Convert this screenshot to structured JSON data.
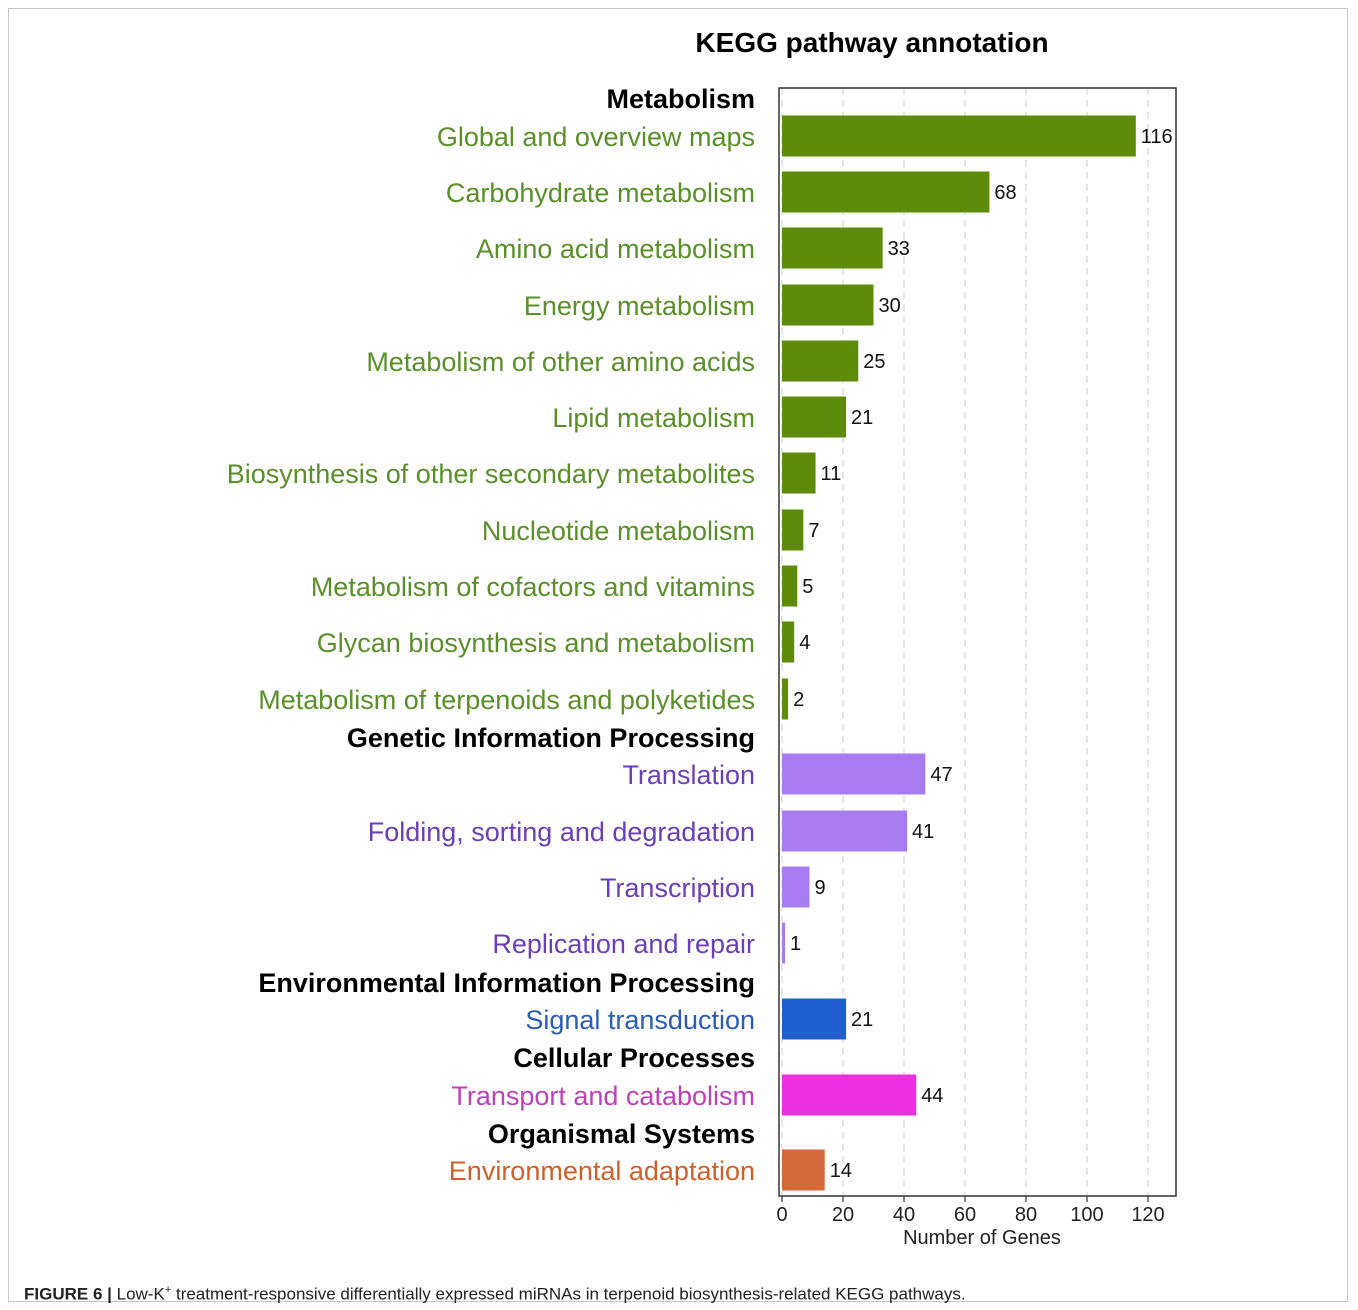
{
  "chart_data": {
    "type": "bar",
    "orientation": "horizontal",
    "title": "KEGG pathway annotation",
    "xlabel": "Number of Genes",
    "xlim": [
      0,
      126
    ],
    "xticks": [
      0,
      20,
      40,
      60,
      80,
      100,
      120
    ],
    "grid": "vertical dashed",
    "groups": [
      {
        "name": "Metabolism",
        "color": "#5e8c0a",
        "label_color": "#5a8f29",
        "categories": [
          "Global and overview maps",
          "Carbohydrate metabolism",
          "Amino acid metabolism",
          "Energy metabolism",
          "Metabolism of other amino acids",
          "Lipid metabolism",
          "Biosynthesis of other secondary metabolites",
          "Nucleotide metabolism",
          "Metabolism of cofactors and vitamins",
          "Glycan biosynthesis and metabolism",
          "Metabolism of terpenoids and polyketides"
        ],
        "values": [
          116,
          68,
          33,
          30,
          25,
          21,
          11,
          7,
          5,
          4,
          2
        ]
      },
      {
        "name": "Genetic Information Processing",
        "color": "#a67cf0",
        "label_color": "#6a3fb8",
        "categories": [
          "Translation",
          "Folding, sorting and degradation",
          "Transcription",
          "Replication and repair"
        ],
        "values": [
          47,
          41,
          9,
          1
        ]
      },
      {
        "name": "Environmental Information Processing",
        "color": "#1f5fd0",
        "label_color": "#2a5db5",
        "categories": [
          "Signal transduction"
        ],
        "values": [
          21
        ]
      },
      {
        "name": "Cellular Processes",
        "color": "#ec2fe0",
        "label_color": "#c040b8",
        "categories": [
          "Transport and catabolism"
        ],
        "values": [
          44
        ]
      },
      {
        "name": "Organismal Systems",
        "color": "#d4683a",
        "label_color": "#d0602a",
        "categories": [
          "Environmental adaptation"
        ],
        "values": [
          14
        ]
      }
    ]
  },
  "caption": {
    "label": "FIGURE 6 |",
    "text_before": " Low-K",
    "superscript": "+",
    "text_after": " treatment-responsive differentially expressed miRNAs in terpenoid biosynthesis-related KEGG pathways."
  }
}
